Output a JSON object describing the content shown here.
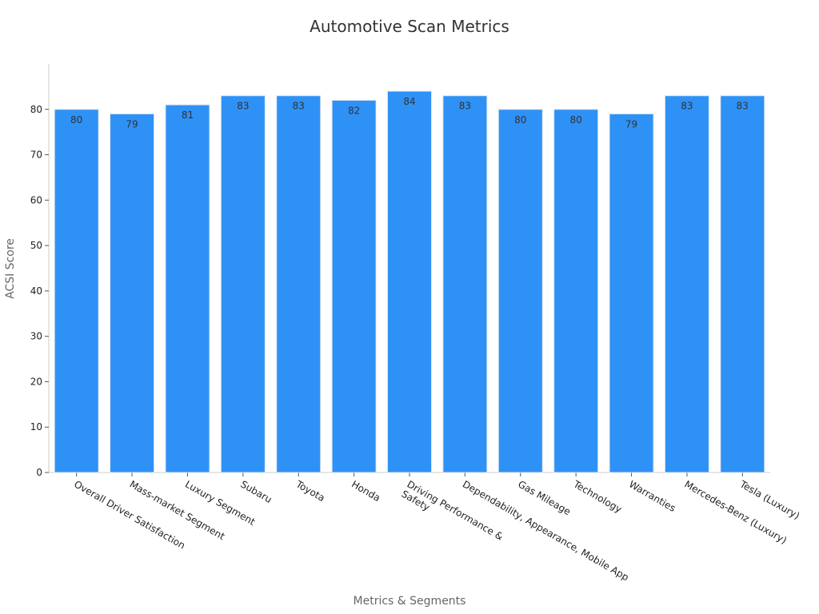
{
  "chart_data": {
    "type": "bar",
    "title": "Automotive Scan Metrics",
    "xlabel": "Metrics & Segments",
    "ylabel": "ACSI Score",
    "ylim": [
      0,
      90
    ],
    "yticks": [
      0,
      10,
      20,
      30,
      40,
      50,
      60,
      70,
      80
    ],
    "categories": [
      [
        "Overall Driver Satisfaction"
      ],
      [
        "Mass-market Segment"
      ],
      [
        "Luxury Segment"
      ],
      [
        "Subaru"
      ],
      [
        "Toyota"
      ],
      [
        "Honda"
      ],
      [
        "Driving Performance &",
        "Safety"
      ],
      [
        "Dependability, Appearance, Mobile App"
      ],
      [
        "Gas Mileage"
      ],
      [
        "Technology"
      ],
      [
        "Warranties"
      ],
      [
        "Mercedes-Benz (Luxury)"
      ],
      [
        "Tesla (Luxury)"
      ]
    ],
    "values": [
      80,
      79,
      81,
      83,
      83,
      82,
      84,
      83,
      80,
      80,
      79,
      83,
      83
    ],
    "bar_color": "#2e91f6",
    "bar_edge_color": "#dde6f0",
    "grid": false,
    "legend": "none"
  }
}
